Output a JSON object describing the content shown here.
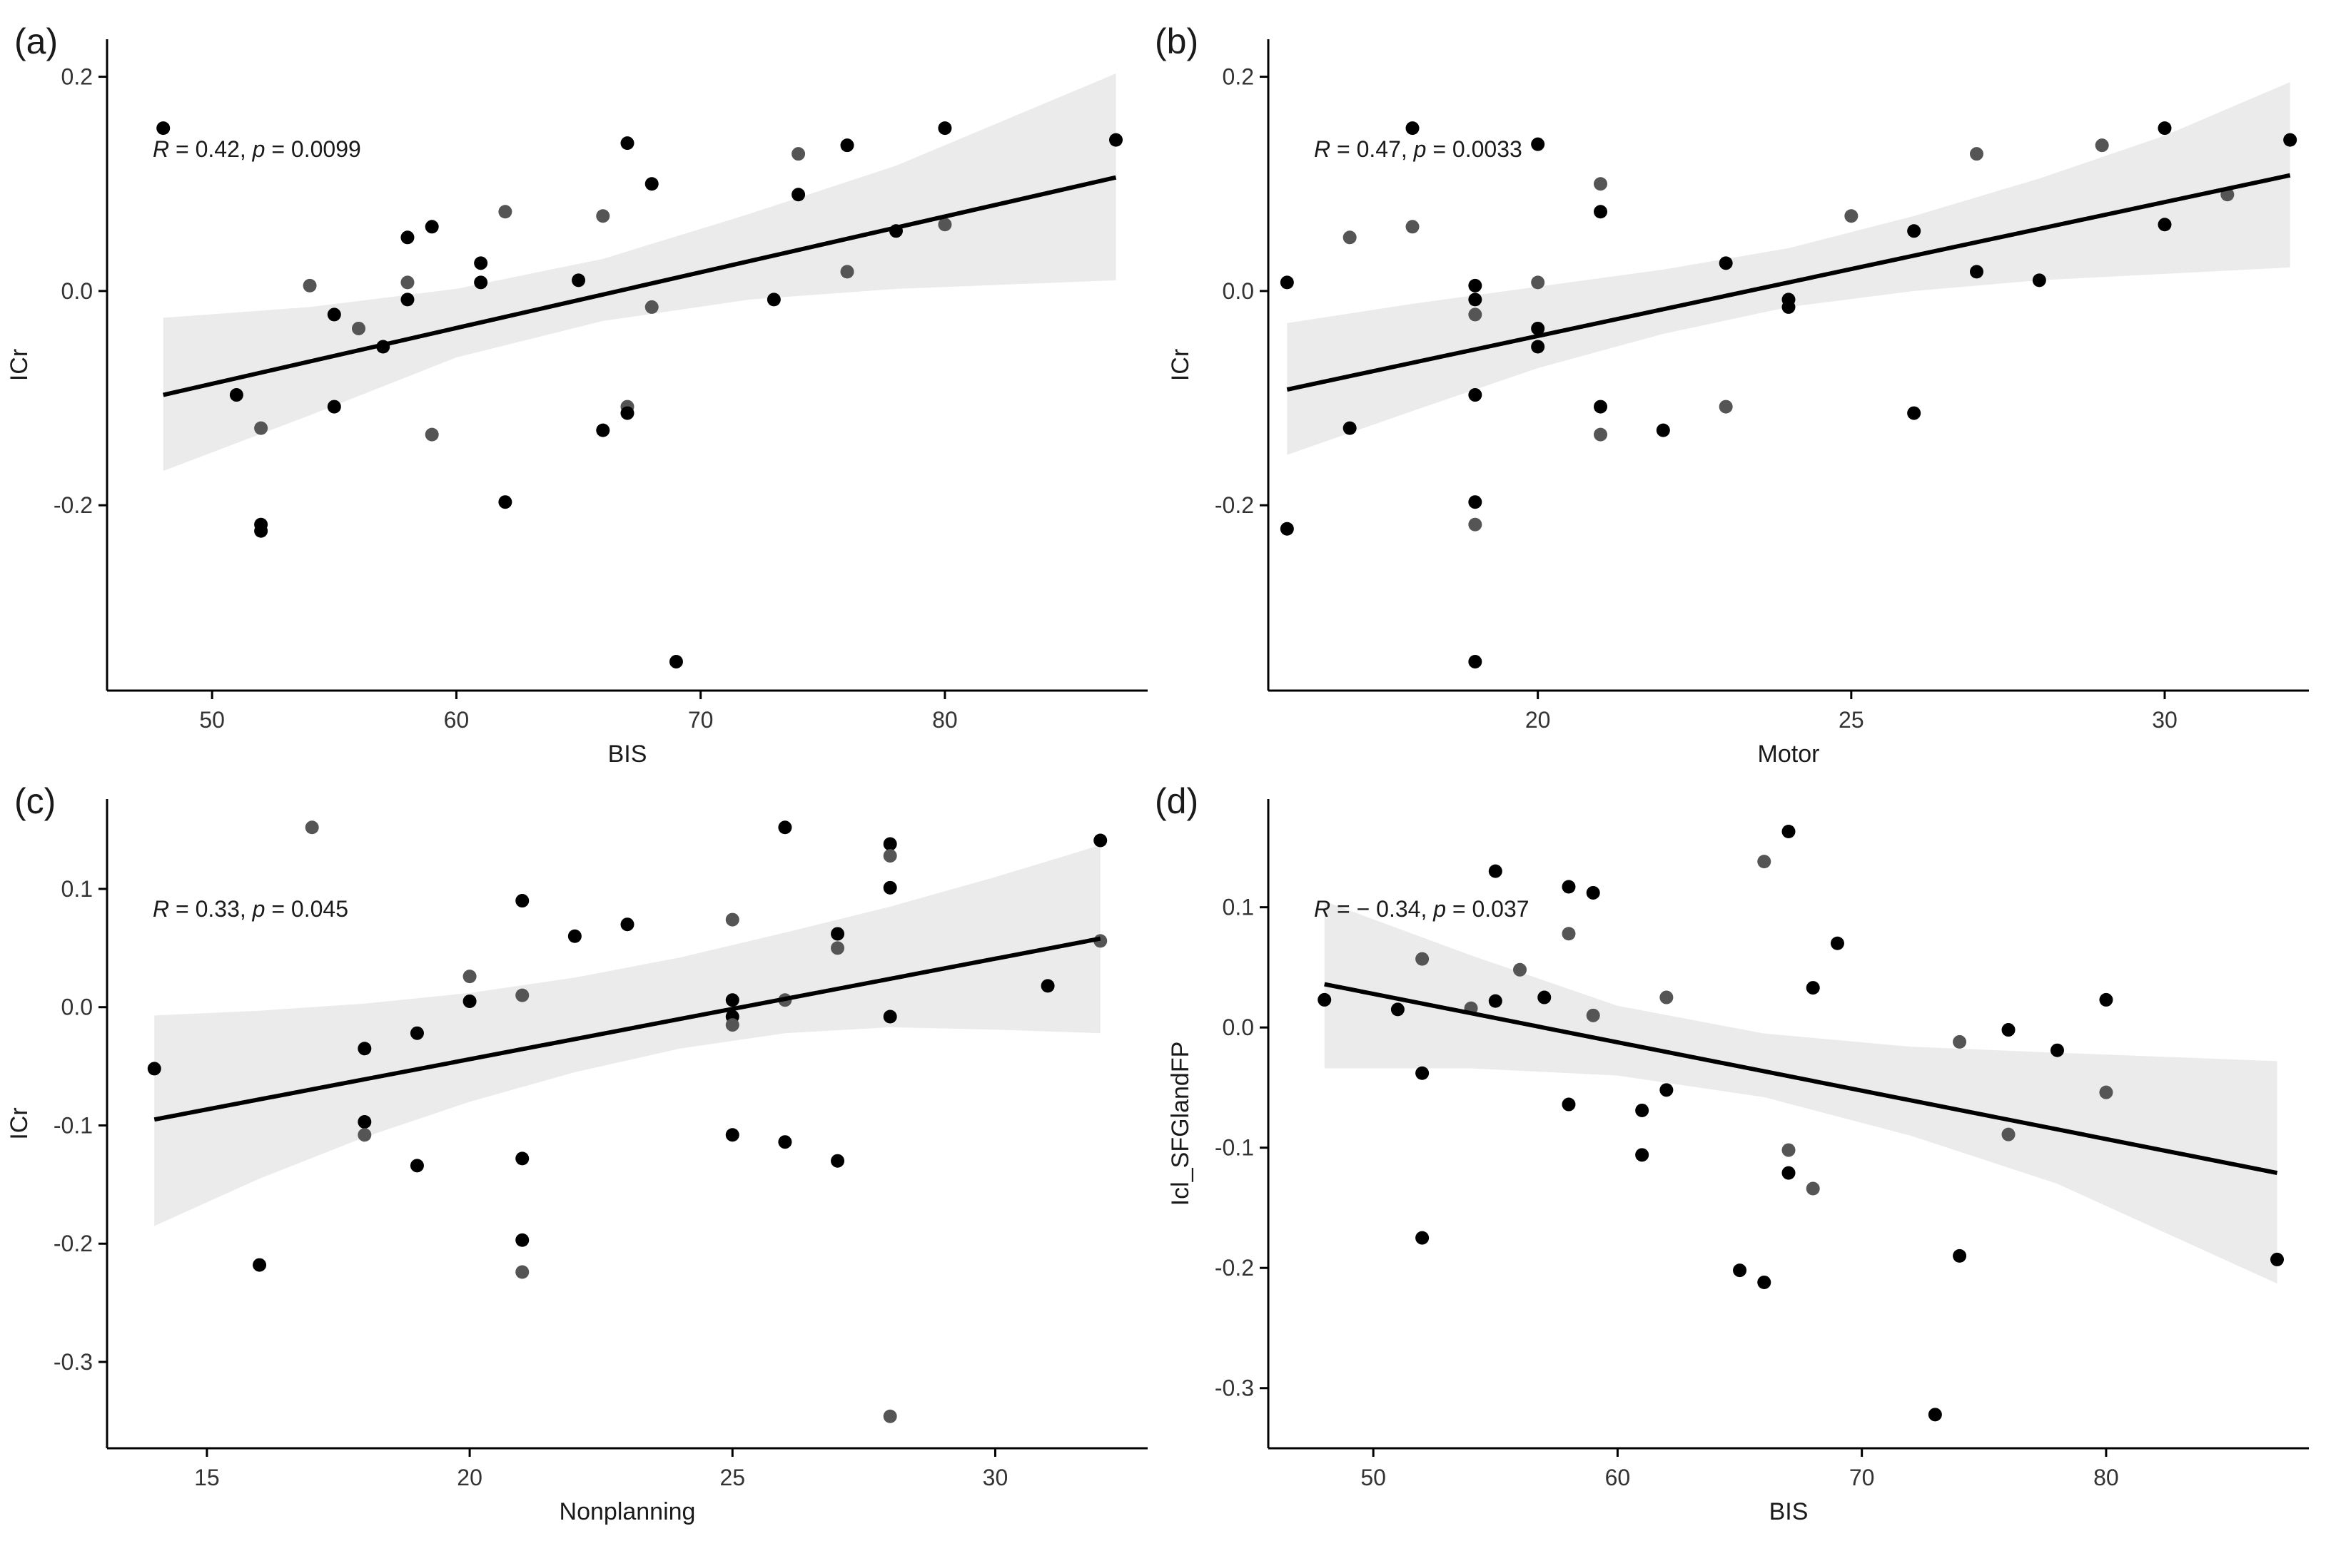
{
  "figure": {
    "colors": {
      "point": "#000000",
      "point_alt": "#555555",
      "line": "#000000",
      "band": "#ebebeb",
      "axis": "#000000"
    }
  },
  "chart_data": [
    {
      "type": "scatter",
      "panel": "(a)",
      "xlabel": "BIS",
      "ylabel": "ICr",
      "xlim": [
        45.7,
        88.3
      ],
      "ylim": [
        -0.373,
        0.235
      ],
      "xticks": [
        50,
        60,
        70,
        80
      ],
      "yticks": [
        0.2,
        0.0,
        -0.2
      ],
      "ytick_labels": [
        "0.2",
        "0.0",
        "-0.2"
      ],
      "xtick_labels": [
        "50",
        "60",
        "70",
        "80"
      ],
      "annotation": {
        "r_label": "R",
        "r_value": " = 0.42, ",
        "p_label": "p",
        "p_value": " = 0.0099"
      },
      "fit": {
        "x": [
          48,
          87
        ],
        "y": [
          -0.097,
          0.106
        ]
      },
      "band": {
        "x": [
          48,
          54,
          60,
          66,
          72,
          78,
          87
        ],
        "upper": [
          -0.025,
          -0.015,
          0.002,
          0.03,
          0.072,
          0.117,
          0.203
        ],
        "lower": [
          -0.168,
          -0.116,
          -0.062,
          -0.028,
          -0.008,
          0.002,
          0.01
        ]
      },
      "points": [
        [
          48,
          0.152
        ],
        [
          51,
          -0.097
        ],
        [
          52,
          -0.128
        ],
        [
          52,
          -0.218
        ],
        [
          52,
          -0.224
        ],
        [
          54,
          0.005
        ],
        [
          55,
          -0.108
        ],
        [
          55,
          -0.022
        ],
        [
          56,
          -0.035
        ],
        [
          57,
          -0.052
        ],
        [
          58,
          0.05
        ],
        [
          58,
          0.008
        ],
        [
          58,
          -0.008
        ],
        [
          59,
          0.06
        ],
        [
          59,
          -0.134
        ],
        [
          61,
          0.026
        ],
        [
          61,
          0.008
        ],
        [
          62,
          0.074
        ],
        [
          62,
          -0.197
        ],
        [
          65,
          0.01
        ],
        [
          66,
          0.07
        ],
        [
          66,
          -0.13
        ],
        [
          67,
          0.138
        ],
        [
          67,
          -0.108
        ],
        [
          67,
          -0.114
        ],
        [
          68,
          0.1
        ],
        [
          68,
          -0.015
        ],
        [
          69,
          -0.346
        ],
        [
          73,
          -0.008
        ],
        [
          74,
          0.128
        ],
        [
          74,
          0.09
        ],
        [
          76,
          0.136
        ],
        [
          76,
          0.018
        ],
        [
          78,
          0.056
        ],
        [
          80,
          0.152
        ],
        [
          80,
          0.062
        ],
        [
          87,
          0.141
        ]
      ]
    },
    {
      "type": "scatter",
      "panel": "(b)",
      "xlabel": "Motor",
      "ylabel": "ICr",
      "xlim": [
        15.7,
        32.3
      ],
      "ylim": [
        -0.373,
        0.235
      ],
      "xticks": [
        20,
        25,
        30
      ],
      "yticks": [
        0.2,
        0.0,
        -0.2
      ],
      "ytick_labels": [
        "0.2",
        "0.0",
        "-0.2"
      ],
      "xtick_labels": [
        "20",
        "25",
        "30"
      ],
      "annotation": {
        "r_label": "R",
        "r_value": " = 0.47, ",
        "p_label": "p",
        "p_value": " = 0.0033"
      },
      "fit": {
        "x": [
          16,
          32
        ],
        "y": [
          -0.092,
          0.108
        ]
      },
      "band": {
        "x": [
          16,
          18,
          20,
          22,
          24,
          26,
          28,
          30,
          32
        ],
        "upper": [
          -0.03,
          -0.012,
          0.004,
          0.02,
          0.04,
          0.07,
          0.105,
          0.145,
          0.195
        ],
        "lower": [
          -0.153,
          -0.112,
          -0.072,
          -0.04,
          -0.015,
          0.0,
          0.01,
          0.016,
          0.022
        ]
      },
      "points": [
        [
          16,
          0.008
        ],
        [
          16,
          -0.222
        ],
        [
          17,
          0.05
        ],
        [
          17,
          -0.128
        ],
        [
          18,
          0.152
        ],
        [
          18,
          0.06
        ],
        [
          19,
          0.005
        ],
        [
          19,
          -0.008
        ],
        [
          19,
          -0.022
        ],
        [
          19,
          -0.097
        ],
        [
          19,
          -0.197
        ],
        [
          19,
          -0.218
        ],
        [
          19,
          -0.346
        ],
        [
          20,
          0.137
        ],
        [
          20,
          0.008
        ],
        [
          20,
          -0.035
        ],
        [
          20,
          -0.052
        ],
        [
          21,
          0.1
        ],
        [
          21,
          0.074
        ],
        [
          21,
          -0.108
        ],
        [
          21,
          -0.134
        ],
        [
          22,
          -0.13
        ],
        [
          23,
          0.026
        ],
        [
          23,
          -0.108
        ],
        [
          24,
          -0.008
        ],
        [
          24,
          -0.015
        ],
        [
          25,
          0.07
        ],
        [
          26,
          0.056
        ],
        [
          26,
          -0.114
        ],
        [
          27,
          0.128
        ],
        [
          27,
          0.018
        ],
        [
          28,
          0.01
        ],
        [
          29,
          0.136
        ],
        [
          30,
          0.152
        ],
        [
          30,
          0.062
        ],
        [
          31,
          0.09
        ],
        [
          32,
          0.141
        ]
      ]
    },
    {
      "type": "scatter",
      "panel": "(c)",
      "xlabel": "Nonplanning",
      "ylabel": "ICr",
      "xlim": [
        13.1,
        32.9
      ],
      "ylim": [
        -0.373,
        0.176
      ],
      "xticks": [
        15,
        20,
        25,
        30
      ],
      "yticks": [
        0.1,
        0.0,
        -0.1,
        -0.2,
        -0.3
      ],
      "ytick_labels": [
        "0.1",
        "0.0",
        "-0.1",
        "-0.2",
        "-0.3"
      ],
      "xtick_labels": [
        "15",
        "20",
        "25",
        "30"
      ],
      "annotation": {
        "r_label": "R",
        "r_value": " = 0.33, ",
        "p_label": "p",
        "p_value": " = 0.045"
      },
      "fit": {
        "x": [
          14,
          32
        ],
        "y": [
          -0.095,
          0.058
        ]
      },
      "band": {
        "x": [
          14,
          16,
          18,
          20,
          22,
          24,
          26,
          28,
          30,
          32
        ],
        "upper": [
          -0.007,
          -0.003,
          0.003,
          0.012,
          0.025,
          0.042,
          0.063,
          0.085,
          0.11,
          0.137
        ],
        "lower": [
          -0.185,
          -0.145,
          -0.11,
          -0.08,
          -0.055,
          -0.035,
          -0.022,
          -0.017,
          -0.019,
          -0.022
        ]
      },
      "points": [
        [
          14,
          -0.052
        ],
        [
          16,
          -0.218
        ],
        [
          17,
          0.152
        ],
        [
          18,
          -0.035
        ],
        [
          18,
          -0.097
        ],
        [
          18,
          -0.108
        ],
        [
          19,
          -0.022
        ],
        [
          19,
          -0.134
        ],
        [
          20,
          0.026
        ],
        [
          20,
          0.005
        ],
        [
          21,
          0.09
        ],
        [
          21,
          0.01
        ],
        [
          21,
          -0.128
        ],
        [
          21,
          -0.197
        ],
        [
          21,
          -0.224
        ],
        [
          22,
          0.06
        ],
        [
          23,
          0.07
        ],
        [
          25,
          0.074
        ],
        [
          25,
          0.006
        ],
        [
          25,
          -0.008
        ],
        [
          25,
          -0.015
        ],
        [
          25,
          -0.108
        ],
        [
          26,
          0.152
        ],
        [
          26,
          0.006
        ],
        [
          26,
          -0.114
        ],
        [
          27,
          0.062
        ],
        [
          27,
          0.05
        ],
        [
          27,
          -0.13
        ],
        [
          28,
          0.138
        ],
        [
          28,
          0.128
        ],
        [
          28,
          0.101
        ],
        [
          28,
          -0.008
        ],
        [
          28,
          -0.346
        ],
        [
          31,
          0.018
        ],
        [
          32,
          0.141
        ],
        [
          32,
          0.056
        ]
      ]
    },
    {
      "type": "scatter",
      "panel": "(d)",
      "xlabel": "BIS",
      "ylabel": "Icl_SFGlandFP",
      "xlim": [
        45.7,
        88.3
      ],
      "ylim": [
        -0.35,
        0.19
      ],
      "xticks": [
        50,
        60,
        70,
        80
      ],
      "yticks": [
        0.1,
        0.0,
        -0.1,
        -0.2,
        -0.3
      ],
      "ytick_labels": [
        "0.1",
        "0.0",
        "-0.1",
        "-0.2",
        "-0.3"
      ],
      "xtick_labels": [
        "50",
        "60",
        "70",
        "80"
      ],
      "annotation": {
        "r_label": "R",
        "r_value": " = − 0.34, ",
        "p_label": "p",
        "p_value": " = 0.037"
      },
      "fit": {
        "x": [
          48,
          87
        ],
        "y": [
          0.036,
          -0.121
        ]
      },
      "band": {
        "x": [
          48,
          54,
          60,
          66,
          72,
          78,
          87
        ],
        "upper": [
          0.105,
          0.06,
          0.018,
          -0.005,
          -0.016,
          -0.021,
          -0.028
        ],
        "lower": [
          -0.034,
          -0.034,
          -0.04,
          -0.058,
          -0.09,
          -0.13,
          -0.213
        ]
      },
      "points": [
        [
          48,
          0.023
        ],
        [
          51,
          0.015
        ],
        [
          52,
          0.057
        ],
        [
          52,
          -0.038
        ],
        [
          52,
          -0.175
        ],
        [
          54,
          0.016
        ],
        [
          55,
          0.13
        ],
        [
          55,
          0.022
        ],
        [
          56,
          0.048
        ],
        [
          57,
          0.025
        ],
        [
          58,
          0.117
        ],
        [
          58,
          0.078
        ],
        [
          58,
          -0.064
        ],
        [
          59,
          0.112
        ],
        [
          59,
          0.01
        ],
        [
          61,
          -0.069
        ],
        [
          61,
          -0.106
        ],
        [
          62,
          0.025
        ],
        [
          62,
          -0.052
        ],
        [
          65,
          -0.202
        ],
        [
          66,
          0.138
        ],
        [
          66,
          -0.212
        ],
        [
          67,
          0.163
        ],
        [
          67,
          -0.102
        ],
        [
          67,
          -0.121
        ],
        [
          68,
          0.033
        ],
        [
          68,
          -0.134
        ],
        [
          69,
          0.07
        ],
        [
          73,
          -0.322
        ],
        [
          74,
          -0.012
        ],
        [
          74,
          -0.19
        ],
        [
          76,
          -0.002
        ],
        [
          76,
          -0.089
        ],
        [
          78,
          -0.019
        ],
        [
          80,
          0.023
        ],
        [
          80,
          -0.054
        ],
        [
          87,
          -0.193
        ]
      ]
    }
  ]
}
